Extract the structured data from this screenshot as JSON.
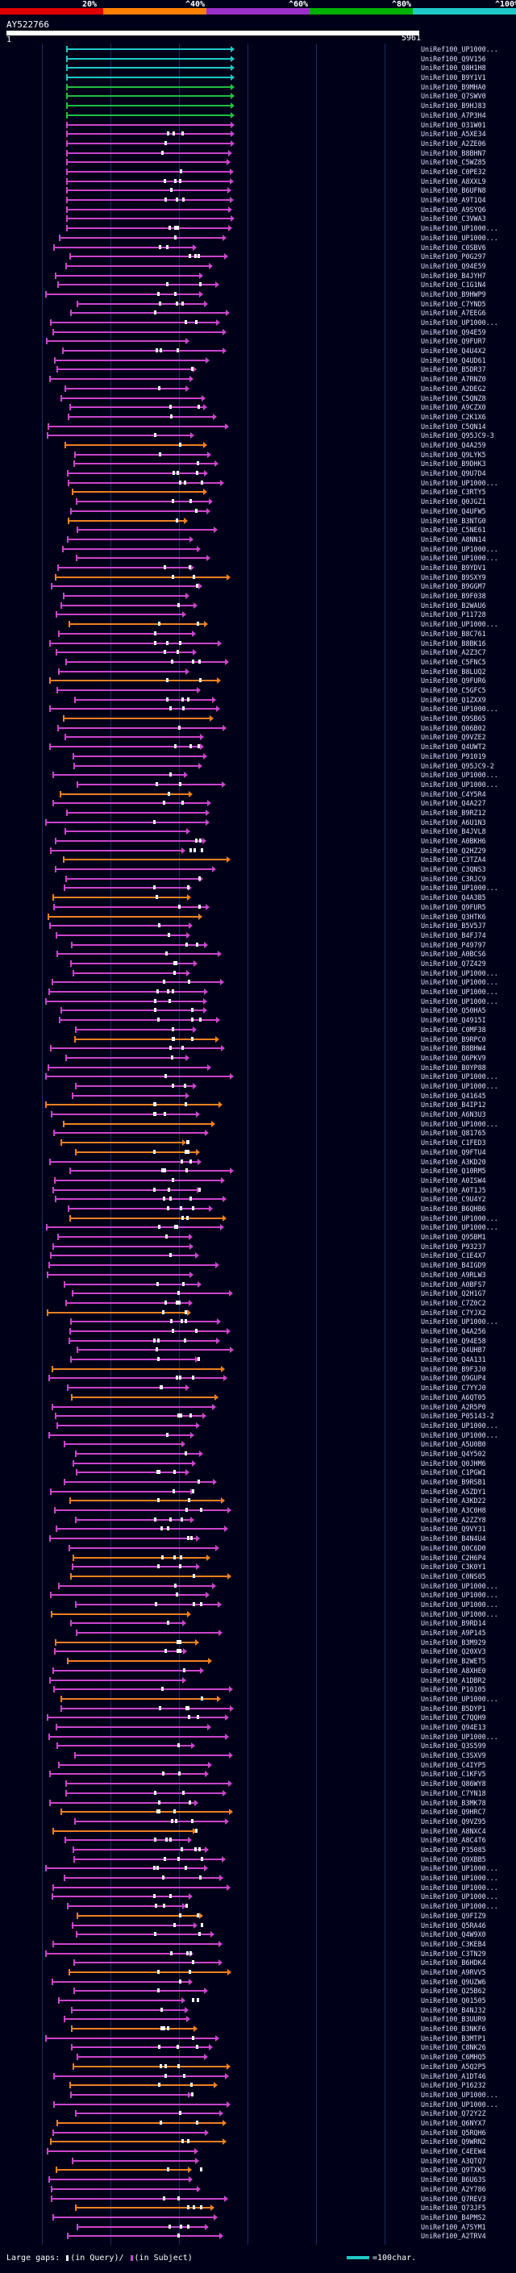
{
  "identity_scale": {
    "segments": [
      {
        "label": "20%",
        "color": "#e00000"
      },
      {
        "label": "^40%",
        "color": "#ff8000"
      },
      {
        "label": "^60%",
        "color": "#9a30c8"
      },
      {
        "label": "^80%",
        "color": "#00b000"
      },
      {
        "label": "^100%",
        "color": "#20c8c8"
      }
    ]
  },
  "colors": {
    "cyan": "#20c8c8",
    "green": "#20c040",
    "magenta": "#cc44cc",
    "orange": "#f08020",
    "gap": "#ffffff",
    "background": "#000018",
    "grid": "#1c2a66"
  },
  "query": {
    "name": "AY522766",
    "start": "1",
    "end": "5961"
  },
  "hits": [
    "UniRef100_UP1000...",
    "UniRef100_Q9V156",
    "UniRef100_Q8H1H8",
    "UniRef100_B9Y1V1",
    "UniRef100_B9MHA0",
    "UniRef100_Q7SWV0",
    "UniRef100_B9HJ83",
    "UniRef100_A7P3H4",
    "UniRef100_O31W01",
    "UniRef100_A5XE34",
    "UniRef100_A2ZE06",
    "UniRef100_B8BHN7",
    "UniRef100_C5WZ85",
    "UniRef100_C0PE32",
    "UniRef100_A8XXL9",
    "UniRef100_B6UFN8",
    "UniRef100_A9T1Q4",
    "UniRef100_A9SYQ6",
    "UniRef100_C3VWA3",
    "UniRef100_UP1000...",
    "UniRef100_UP1000...",
    "UniRef100_C0SBV6",
    "UniRef100_P0G297",
    "UniRef100_Q94E59",
    "UniRef100_B4JYH7",
    "UniRef100_C1G1N4",
    "UniRef100_B9HWP9",
    "UniRef100_C7YND5",
    "UniRef100_A7EEG6",
    "UniRef100_UP1000...",
    "UniRef100_Q94E59",
    "UniRef100_Q9FUR7",
    "UniRef100_Q4U4X2",
    "UniRef100_Q4UD61",
    "UniRef100_B5DR37",
    "UniRef100_A7RNZ0",
    "UniRef100_A2DEG2",
    "UniRef100_C5QNZ8",
    "UniRef100_A9CZX0",
    "UniRef100_C2K1X6",
    "UniRef100_C5QN14",
    "UniRef100_Q95JC9-3",
    "UniRef100_Q4A259",
    "UniRef100_Q9LYK5",
    "UniRef100_B9DHK3",
    "UniRef100_Q9U7D4",
    "UniRef100_UP1000...",
    "UniRef100_C3RTY5",
    "UniRef100_Q0JGZ1",
    "UniRef100_Q4UFW5",
    "UniRef100_B3NTG0",
    "UniRef100_C5NE61",
    "UniRef100_A8NN14",
    "UniRef100_UP1000...",
    "UniRef100_UP1000...",
    "UniRef100_B9YDV1",
    "UniRef100_B9SXY9",
    "UniRef100_B9GGM7",
    "UniRef100_B9F038",
    "UniRef100_B2WAU6",
    "UniRef100_P11728",
    "UniRef100_UP1000...",
    "UniRef100_B8C761",
    "UniRef100_B8BK16",
    "UniRef100_A2Z3C7",
    "UniRef100_C5FNC5",
    "UniRef100_B8LUQ2",
    "UniRef100_Q9FUR6",
    "UniRef100_C5GFC5",
    "UniRef100_Q1ZXX9",
    "UniRef100_UP1000...",
    "UniRef100_Q9SB65",
    "UniRef100_Q06B02",
    "UniRef100_Q9VZE2",
    "UniRef100_Q4UWT2",
    "UniRef100_P91019",
    "UniRef100_Q95JC9-2",
    "UniRef100_UP1000...",
    "UniRef100_UP1000...",
    "UniRef100_C4Y5R4",
    "UniRef100_Q4A227",
    "UniRef100_B9RZ12",
    "UniRef100_A6U1N3",
    "UniRef100_B4JVL8",
    "UniRef100_A0BKH6",
    "UniRef100_Q2HZ29",
    "UniRef100_C3TZA4",
    "UniRef100_C3QNS3",
    "UniRef100_C3RJC9",
    "UniRef100_UP1000...",
    "UniRef100_Q4A3B5",
    "UniRef100_Q9FUR5",
    "UniRef100_Q3HTK6",
    "UniRef100_B5V5J7",
    "UniRef100_B4FJ74",
    "UniRef100_P49797",
    "UniRef100_A0BCS6",
    "UniRef100_Q7Z429",
    "UniRef100_UP1000...",
    "UniRef100_UP1000...",
    "UniRef100_UP1000...",
    "UniRef100_UP1000...",
    "UniRef100_Q50HA5",
    "UniRef100_Q4915I",
    "UniRef100_C0MF38",
    "UniRef100_B9RPC0",
    "UniRef100_B8BHW4",
    "UniRef100_Q6PKV9",
    "UniRef100_B0YP88",
    "UniRef100_UP1000...",
    "UniRef100_UP1000...",
    "UniRef100_Q41645",
    "UniRef100_B4IP12",
    "UniRef100_A6N3U3",
    "UniRef100_UP1000...",
    "UniRef100_Q81765",
    "UniRef100_C1FED3",
    "UniRef100_Q9FTU4",
    "UniRef100_A3KD20",
    "UniRef100_Q10RM5",
    "UniRef100_A0ISW4",
    "UniRef100_A0T1J5",
    "UniRef100_C9U4Y2",
    "UniRef100_B6QHB6",
    "UniRef100_UP1000...",
    "UniRef100_UP1000...",
    "UniRef100_Q95BM1",
    "UniRef100_P93237",
    "UniRef100_C1E4X7",
    "UniRef100_B4IGD9",
    "UniRef100_A9RLW3",
    "UniRef100_A0BFS7",
    "UniRef100_Q2H1G7",
    "UniRef100_C7Z0C2",
    "UniRef100_C7YJX2",
    "UniRef100_UP1000...",
    "UniRef100_Q4A256",
    "UniRef100_Q94E58",
    "UniRef100_Q4UHB7",
    "UniRef100_Q4A131",
    "UniRef100_B9F3J0",
    "UniRef100_Q9GUP4",
    "UniRef100_C7YYJ0",
    "UniRef100_A6QT05",
    "UniRef100_A2R5P0",
    "UniRef100_P05143-2",
    "UniRef100_UP1000...",
    "UniRef100_UP1000...",
    "UniRef100_A5U0B0",
    "UniRef100_Q4Y502",
    "UniRef100_Q0JHM6",
    "UniRef100_C1PGW1",
    "UniRef100_B9RSB1",
    "UniRef100_A5ZDY1",
    "UniRef100_A3KD22",
    "UniRef100_A3C0H8",
    "UniRef100_A2ZZY8",
    "UniRef100_Q9VY31",
    "UniRef100_B4N4U4",
    "UniRef100_Q0C6D0",
    "UniRef100_C2H6P4",
    "UniRef100_C3K0Y1",
    "UniRef100_C0NS05",
    "UniRef100_UP1000...",
    "UniRef100_UP1000...",
    "UniRef100_UP1000...",
    "UniRef100_UP1000...",
    "UniRef100_B9RD14",
    "UniRef100_A9P145",
    "UniRef100_B3M929",
    "UniRef100_Q20XV3",
    "UniRef100_B2WET5",
    "UniRef100_A8XHE0",
    "UniRef100_A1DBR2",
    "UniRef100_P10105",
    "UniRef100_UP1000...",
    "UniRef100_B5DYP1",
    "UniRef100_C7QQH9",
    "UniRef100_Q94E13",
    "UniRef100_UP1000...",
    "UniRef100_Q3S599",
    "UniRef100_C3SXV9",
    "UniRef100_C4IYP5",
    "UniRef100_C1KFV5",
    "UniRef100_Q86WY8",
    "UniRef100_C7YN18",
    "UniRef100_B3MK78",
    "UniRef100_Q9HRC7",
    "UniRef100_Q9VZ95",
    "UniRef100_A8NXC4",
    "UniRef100_A8C4T6",
    "UniRef100_P35085",
    "UniRef100_Q9XBB5",
    "UniRef100_UP1000...",
    "UniRef100_UP1000...",
    "UniRef100_UP1000...",
    "UniRef100_UP1000...",
    "UniRef100_UP1000...",
    "UniRef100_Q9FIZ9",
    "UniRef100_Q5RA46",
    "UniRef100_Q4W9X0",
    "UniRef100_C3KEB4",
    "UniRef100_C3TN29",
    "UniRef100_B6HDK4",
    "UniRef100_A9RVV5",
    "UniRef100_Q9UZW6",
    "UniRef100_Q25B62",
    "UniRef100_Q01505",
    "UniRef100_B4NJ32",
    "UniRef100_B3UUR9",
    "UniRef100_B3NKF6",
    "UniRef100_B3MTP1",
    "UniRef100_C8NK26",
    "UniRef100_C6MHQ5",
    "UniRef100_A5Q2P5",
    "UniRef100_A1DT46",
    "UniRef100_P16232",
    "UniRef100_UP1000...",
    "UniRef100_UP1000...",
    "UniRef100_Q72Y2Z",
    "UniRef100_Q6NYX7",
    "UniRef100_Q5RQH6",
    "UniRef100_Q9WRN2",
    "UniRef100_C4EEW4",
    "UniRef100_A3QTQ7",
    "UniRef100_Q9TXK5",
    "UniRef100_B6U63S",
    "UniRef100_A2Y786",
    "UniRef100_Q7REV3",
    "UniRef100_Q73JF5",
    "UniRef100_B4PMS2",
    "UniRef100_A7SYM1",
    "UniRef100_A2TRV4"
  ],
  "footer": {
    "gaps_prefix": "Large gaps:",
    "gaps_query": "(in Query)/",
    "gaps_subject": "(in Subject)",
    "legend_text": "=100char."
  }
}
